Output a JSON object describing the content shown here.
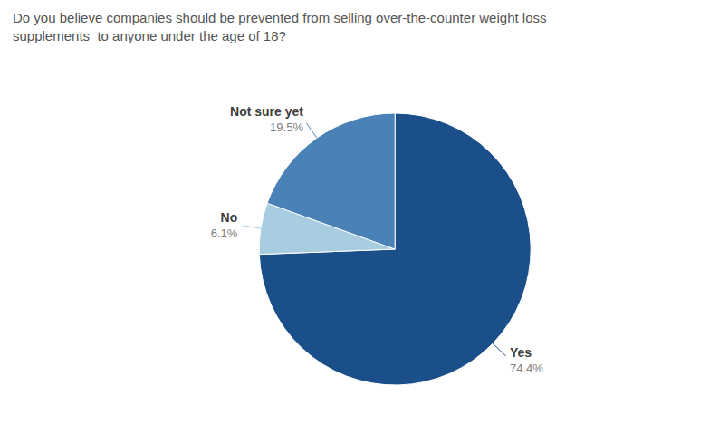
{
  "chart_data": {
    "type": "pie",
    "title": "Do you believe companies should be prevented from selling over-the-counter weight loss\nsupplements  to anyone under the age of 18?",
    "categories": [
      "Yes",
      "No",
      "Not sure yet"
    ],
    "values": [
      74.4,
      6.1,
      19.5
    ],
    "value_labels": [
      "74.4%",
      "6.1%",
      "19.5%"
    ],
    "colors": [
      "#1a4f8a",
      "#a8cce0",
      "#4a82b8"
    ],
    "data_labels": true
  }
}
